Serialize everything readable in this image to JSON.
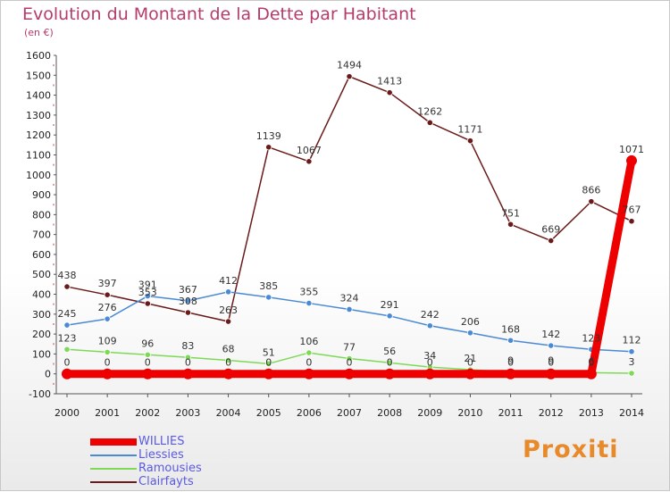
{
  "title": "Evolution du Montant de la Dette par Habitant",
  "subtitle": "(en €)",
  "logo_text": "Proxiti",
  "chart_data": {
    "type": "line",
    "title": "Evolution du Montant de la Dette par Habitant",
    "ylabel": "(en €)",
    "xlabel": "",
    "x": [
      2000,
      2001,
      2002,
      2003,
      2004,
      2005,
      2006,
      2007,
      2008,
      2009,
      2010,
      2011,
      2012,
      2013,
      2014
    ],
    "ylim": [
      -100,
      1600
    ],
    "yticks": [
      -100,
      0,
      100,
      200,
      300,
      400,
      500,
      600,
      700,
      800,
      900,
      1000,
      1100,
      1200,
      1300,
      1400,
      1500,
      1600
    ],
    "grid": false,
    "legend_position": "bottom-left",
    "series": [
      {
        "name": "Clairfayts",
        "color": "#6b1a1a",
        "values": [
          438,
          397,
          353,
          308,
          263,
          1139,
          1067,
          1494,
          1413,
          1262,
          1171,
          751,
          669,
          866,
          767
        ]
      },
      {
        "name": "Liessies",
        "color": "#4a8ad4",
        "values": [
          245,
          276,
          391,
          367,
          412,
          385,
          355,
          324,
          291,
          242,
          206,
          168,
          142,
          123,
          112
        ]
      },
      {
        "name": "Ramousies",
        "color": "#7ed957",
        "values": [
          123,
          109,
          96,
          83,
          68,
          51,
          106,
          77,
          56,
          34,
          21,
          9,
          9,
          6,
          3
        ]
      },
      {
        "name": "WILLIES",
        "color": "#ee0000",
        "values": [
          0,
          0,
          0,
          0,
          0,
          0,
          0,
          0,
          0,
          0,
          0,
          0,
          0,
          0,
          1071
        ]
      }
    ],
    "legend_order": [
      "WILLIES",
      "Liessies",
      "Ramousies",
      "Clairfayts"
    ]
  }
}
